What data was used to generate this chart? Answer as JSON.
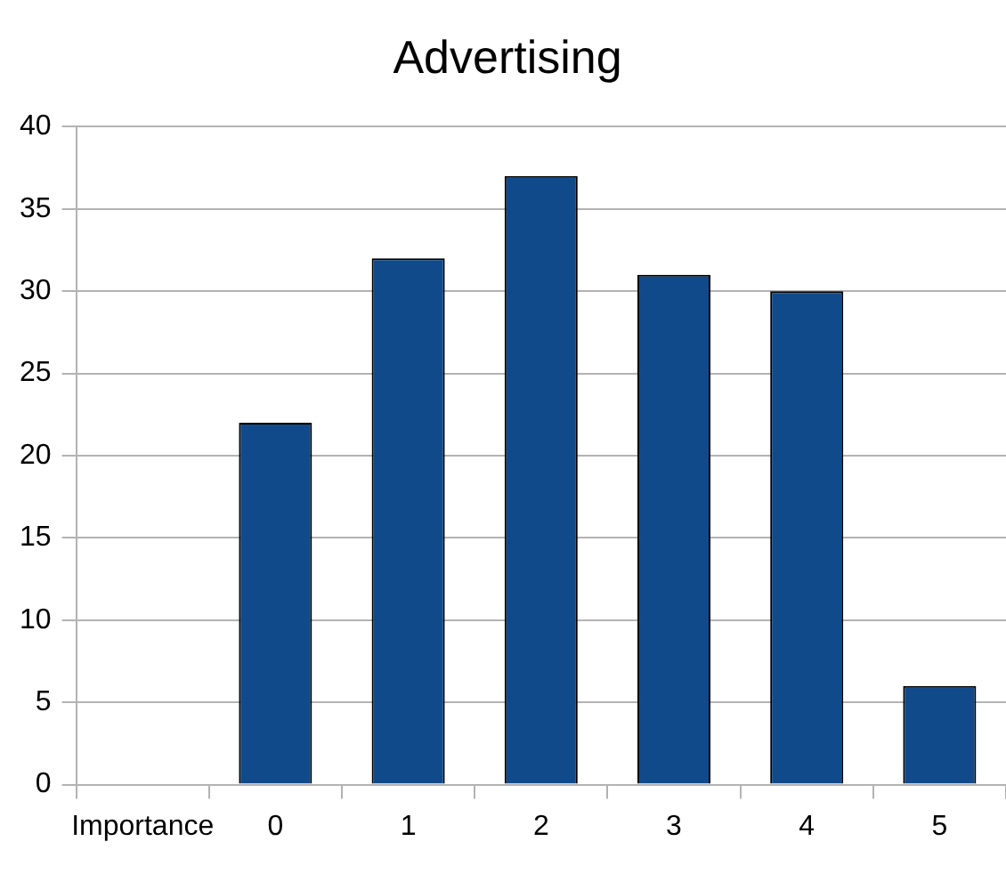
{
  "chart_data": {
    "type": "bar",
    "title": "Advertising",
    "categories": [
      "Importance",
      "0",
      "1",
      "2",
      "3",
      "4",
      "5"
    ],
    "values": [
      null,
      22,
      32,
      37,
      31,
      30,
      6
    ],
    "color": "#114a8b",
    "ylim": [
      0,
      40
    ],
    "yticks": [
      0,
      5,
      10,
      15,
      20,
      25,
      30,
      35,
      40
    ],
    "grid": "y",
    "legend": false
  }
}
